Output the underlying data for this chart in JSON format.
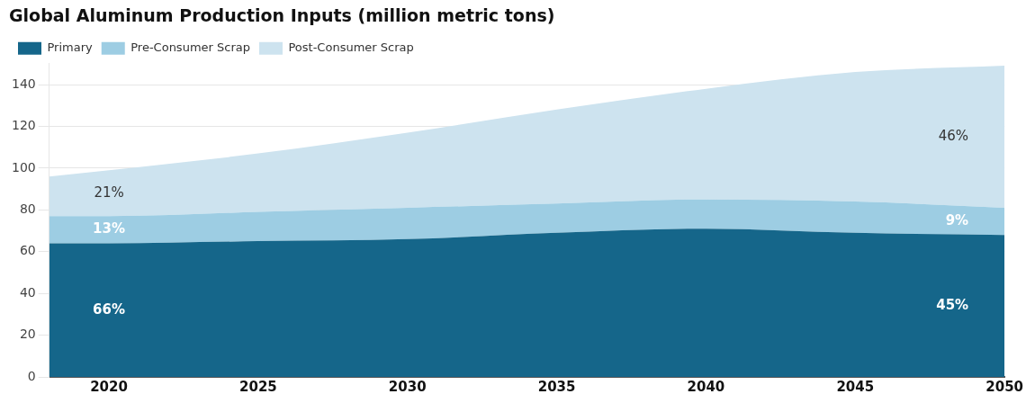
{
  "chart_data": {
    "type": "area",
    "title": "Global Aluminum Production Inputs (million metric tons)",
    "x": [
      2018,
      2020,
      2025,
      2030,
      2035,
      2040,
      2045,
      2050
    ],
    "stacked": true,
    "series": [
      {
        "name": "Primary",
        "color": "#15668a",
        "values": [
          64,
          64,
          65,
          66,
          69,
          71,
          69,
          68
        ]
      },
      {
        "name": "Pre-Consumer Scrap",
        "color": "#9dcde3",
        "values": [
          13,
          13,
          14,
          15,
          14,
          14,
          15,
          13
        ]
      },
      {
        "name": "Post-Consumer Scrap",
        "color": "#cde3ef",
        "values": [
          19,
          22,
          28,
          36,
          45,
          53,
          62,
          68
        ]
      }
    ],
    "xlim": [
      2018,
      2050
    ],
    "xticks": [
      2020,
      2025,
      2030,
      2035,
      2040,
      2045,
      2050
    ],
    "ylim": [
      0,
      150
    ],
    "yticks": [
      0,
      20,
      40,
      60,
      80,
      100,
      120,
      140
    ],
    "grid": "y",
    "legend": "top left",
    "annotations": [
      "66%",
      "13%",
      "21%",
      "45%",
      "9%",
      "46%"
    ]
  }
}
